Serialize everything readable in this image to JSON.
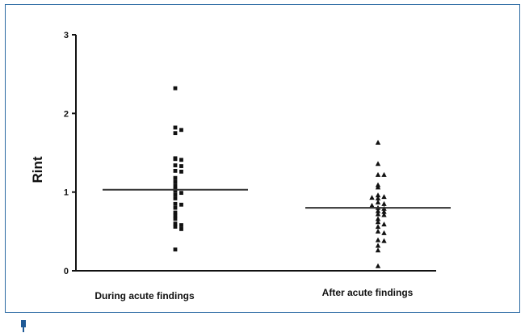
{
  "chart_data": {
    "type": "scatter",
    "title": "",
    "xlabel": "",
    "ylabel": "Rint",
    "ylim": [
      0,
      3
    ],
    "yticks": [
      "0",
      "1",
      "2",
      "3"
    ],
    "categories": [
      "During acute findings",
      "After acute findings"
    ],
    "series": [
      {
        "marker": "square",
        "category": "During acute findings",
        "median": 1.03,
        "values": [
          2.32,
          1.82,
          1.79,
          1.75,
          1.43,
          1.42,
          1.41,
          1.34,
          1.33,
          1.27,
          1.26,
          1.18,
          1.13,
          1.08,
          1.04,
          1.02,
          0.99,
          0.97,
          0.92,
          0.85,
          0.84,
          0.8,
          0.74,
          0.7,
          0.66,
          0.6,
          0.58,
          0.56,
          0.53,
          0.27
        ]
      },
      {
        "marker": "triangle",
        "category": "After acute findings",
        "median": 0.8,
        "values": [
          1.63,
          1.36,
          1.22,
          1.22,
          1.09,
          1.06,
          0.96,
          0.94,
          0.93,
          0.92,
          0.87,
          0.85,
          0.83,
          0.8,
          0.79,
          0.76,
          0.75,
          0.72,
          0.71,
          0.66,
          0.62,
          0.59,
          0.56,
          0.5,
          0.48,
          0.39,
          0.38,
          0.32,
          0.26,
          0.06
        ]
      }
    ],
    "colors": {
      "marker": "#111111",
      "axis": "#111111",
      "frame": "#2b6aa3"
    }
  }
}
